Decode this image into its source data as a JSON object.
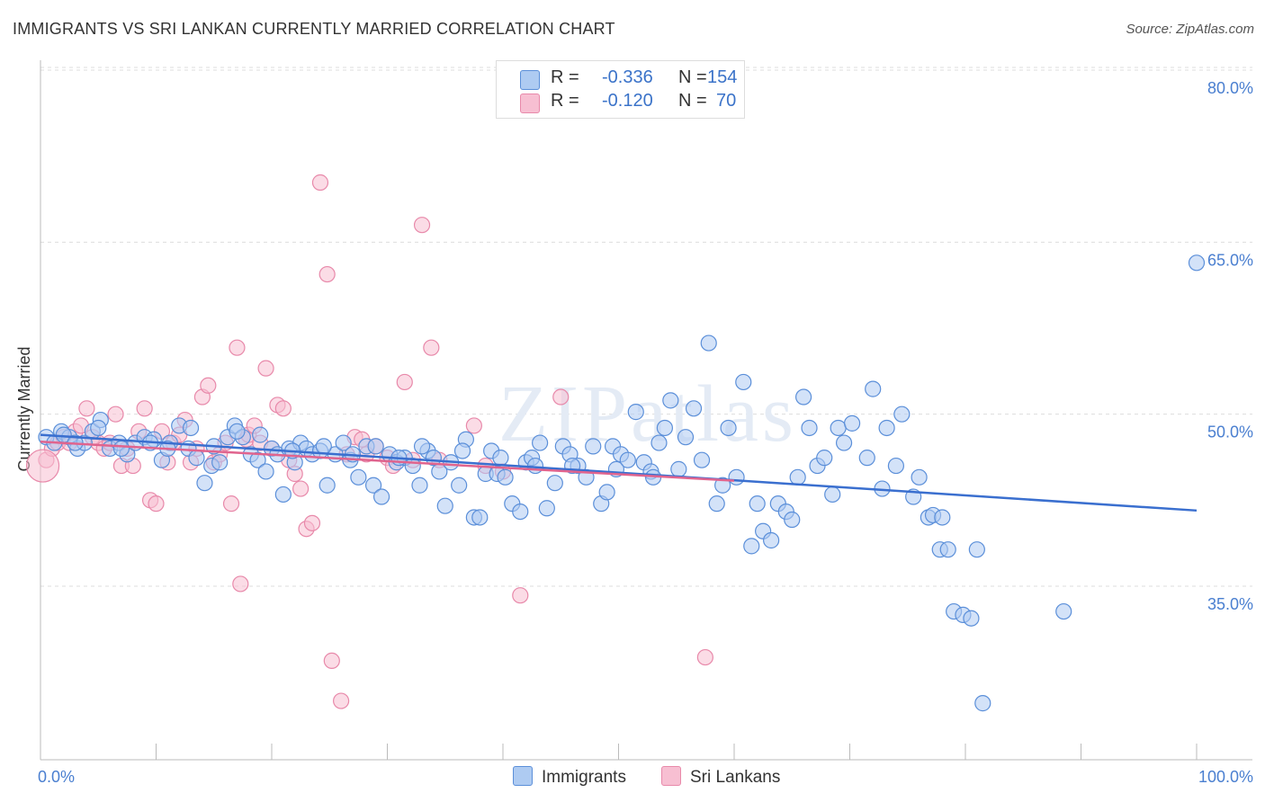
{
  "title": "IMMIGRANTS VS SRI LANKAN CURRENTLY MARRIED CORRELATION CHART",
  "source": "Source: ZipAtlas.com",
  "watermark": "ZIPatlas",
  "colors": {
    "immigrants_fill": "#aecbf2",
    "immigrants_stroke": "#5b8fd9",
    "immigrants_line": "#3a6fcf",
    "srilankans_fill": "#f7bfd2",
    "srilankans_stroke": "#e889aa",
    "srilankans_line": "#e0648e",
    "grid": "#dddddd",
    "axis_label": "#4a7fd0"
  },
  "legend": {
    "rows": [
      {
        "r_label": "R =",
        "r_value": "-0.336",
        "n_label": "N =",
        "n_value": "154"
      },
      {
        "r_label": "R =",
        "r_value": "-0.120",
        "n_label": "N =",
        "n_value": "70"
      }
    ]
  },
  "bottom_legend": {
    "immigrants": "Immigrants",
    "srilankans": "Sri Lankans"
  },
  "chart_data": {
    "type": "scatter",
    "title": "IMMIGRANTS VS SRI LANKAN CURRENTLY MARRIED CORRELATION CHART",
    "xlabel": "",
    "ylabel": "Currently Married",
    "xlim": [
      0,
      100
    ],
    "ylim": [
      20,
      82
    ],
    "x_tick_labels": [
      "0.0%",
      "100.0%"
    ],
    "y_ticks": [
      35,
      50,
      65,
      80
    ],
    "y_tick_labels": [
      "35.0%",
      "50.0%",
      "65.0%",
      "80.0%"
    ],
    "series": [
      {
        "name": "Immigrants",
        "trend": {
          "x": [
            0,
            100
          ],
          "y": [
            48.2,
            41.6
          ]
        },
        "points": [
          [
            0.5,
            48
          ],
          [
            1.2,
            47.5
          ],
          [
            1.8,
            48.5
          ],
          [
            2.5,
            48
          ],
          [
            3.2,
            47
          ],
          [
            3.8,
            47.5
          ],
          [
            4.5,
            48.5
          ],
          [
            5.2,
            49.5
          ],
          [
            6,
            47
          ],
          [
            6.8,
            47.5
          ],
          [
            7.5,
            46.5
          ],
          [
            8.2,
            47.5
          ],
          [
            9,
            48
          ],
          [
            9.8,
            47.8
          ],
          [
            10.5,
            46
          ],
          [
            11.2,
            47.5
          ],
          [
            12,
            49
          ],
          [
            12.8,
            47
          ],
          [
            13.5,
            46.2
          ],
          [
            14.2,
            44
          ],
          [
            14.8,
            45.5
          ],
          [
            15.5,
            45.8
          ],
          [
            16.2,
            48
          ],
          [
            16.8,
            49
          ],
          [
            17.5,
            48
          ],
          [
            18.2,
            46.5
          ],
          [
            18.8,
            46
          ],
          [
            19.5,
            45
          ],
          [
            20,
            47
          ],
          [
            20.5,
            46.5
          ],
          [
            21,
            43
          ],
          [
            21.5,
            47
          ],
          [
            22,
            45.8
          ],
          [
            22.5,
            47.5
          ],
          [
            23,
            47
          ],
          [
            23.5,
            46.5
          ],
          [
            24.2,
            46.8
          ],
          [
            24.8,
            43.8
          ],
          [
            25.5,
            46.5
          ],
          [
            26.2,
            47.5
          ],
          [
            26.8,
            46
          ],
          [
            27.5,
            44.5
          ],
          [
            28.2,
            47.2
          ],
          [
            28.8,
            43.8
          ],
          [
            29.5,
            42.8
          ],
          [
            30.2,
            46.5
          ],
          [
            30.8,
            45.8
          ],
          [
            31.5,
            46.2
          ],
          [
            32.2,
            45.5
          ],
          [
            32.8,
            43.8
          ],
          [
            33.5,
            46.8
          ],
          [
            34,
            46.2
          ],
          [
            34.5,
            45
          ],
          [
            35,
            42
          ],
          [
            35.5,
            45.8
          ],
          [
            36.2,
            43.8
          ],
          [
            36.8,
            47.8
          ],
          [
            37.5,
            41
          ],
          [
            38,
            41
          ],
          [
            38.5,
            44.8
          ],
          [
            39,
            46.8
          ],
          [
            39.5,
            44.8
          ],
          [
            40.2,
            44.5
          ],
          [
            40.8,
            42.2
          ],
          [
            41.5,
            41.5
          ],
          [
            42,
            45.8
          ],
          [
            42.5,
            46.2
          ],
          [
            43.2,
            47.5
          ],
          [
            43.8,
            41.8
          ],
          [
            44.5,
            44
          ],
          [
            45.2,
            47.2
          ],
          [
            45.8,
            46.5
          ],
          [
            46.5,
            45.5
          ],
          [
            47.2,
            44.5
          ],
          [
            47.8,
            47.2
          ],
          [
            48.5,
            42.2
          ],
          [
            49,
            43.2
          ],
          [
            49.5,
            47.2
          ],
          [
            50.2,
            46.5
          ],
          [
            50.8,
            46
          ],
          [
            51.5,
            50.2
          ],
          [
            52.2,
            45.8
          ],
          [
            52.8,
            45
          ],
          [
            53.5,
            47.5
          ],
          [
            54,
            48.8
          ],
          [
            54.5,
            51.2
          ],
          [
            55.2,
            45.2
          ],
          [
            55.8,
            48
          ],
          [
            56.5,
            50.5
          ],
          [
            57.2,
            46
          ],
          [
            57.8,
            56.2
          ],
          [
            58.5,
            42.2
          ],
          [
            59,
            43.8
          ],
          [
            59.5,
            48.8
          ],
          [
            60.2,
            44.5
          ],
          [
            60.8,
            52.8
          ],
          [
            61.5,
            38.5
          ],
          [
            62,
            42.2
          ],
          [
            62.5,
            39.8
          ],
          [
            63.2,
            39
          ],
          [
            63.8,
            42.2
          ],
          [
            64.5,
            41.5
          ],
          [
            65,
            40.8
          ],
          [
            65.5,
            44.5
          ],
          [
            66,
            51.5
          ],
          [
            66.5,
            48.8
          ],
          [
            67.2,
            45.5
          ],
          [
            67.8,
            46.2
          ],
          [
            68.5,
            43
          ],
          [
            69,
            48.8
          ],
          [
            69.5,
            47.5
          ],
          [
            70.2,
            49.2
          ],
          [
            71.5,
            46.2
          ],
          [
            72,
            52.2
          ],
          [
            72.8,
            43.5
          ],
          [
            73.2,
            48.8
          ],
          [
            74,
            45.5
          ],
          [
            74.5,
            50
          ],
          [
            75.5,
            42.8
          ],
          [
            76,
            44.5
          ],
          [
            76.8,
            41
          ],
          [
            77.2,
            41.2
          ],
          [
            77.8,
            38.2
          ],
          [
            78,
            41
          ],
          [
            78.5,
            38.2
          ],
          [
            79,
            32.8
          ],
          [
            79.8,
            32.5
          ],
          [
            80.5,
            32.2
          ],
          [
            81,
            38.2
          ],
          [
            81.5,
            24.8
          ],
          [
            88.5,
            32.8
          ],
          [
            100,
            63.2
          ],
          [
            2,
            48.2
          ],
          [
            3,
            47.5
          ],
          [
            5,
            48.8
          ],
          [
            7,
            47
          ],
          [
            9.5,
            47.5
          ],
          [
            11,
            47
          ],
          [
            13,
            48.8
          ],
          [
            15,
            47.2
          ],
          [
            17,
            48.5
          ],
          [
            19,
            48.2
          ],
          [
            21.8,
            46.8
          ],
          [
            24.5,
            47.2
          ],
          [
            27,
            46.5
          ],
          [
            29,
            47.2
          ],
          [
            31,
            46.2
          ],
          [
            33,
            47.2
          ],
          [
            36.5,
            46.8
          ],
          [
            39.8,
            46.2
          ],
          [
            42.8,
            45.5
          ],
          [
            46,
            45.5
          ],
          [
            49.8,
            45.2
          ],
          [
            53,
            44.5
          ]
        ]
      },
      {
        "name": "Sri Lankans",
        "trend": {
          "x": [
            0,
            60
          ],
          "y": [
            47.6,
            44.2
          ]
        },
        "points": [
          [
            0.5,
            46
          ],
          [
            1,
            47
          ],
          [
            1.5,
            47.5
          ],
          [
            2,
            48
          ],
          [
            2.5,
            47.5
          ],
          [
            3,
            48.5
          ],
          [
            3.5,
            49
          ],
          [
            4,
            50.5
          ],
          [
            4.5,
            48
          ],
          [
            5,
            47.5
          ],
          [
            5.5,
            47
          ],
          [
            6,
            47.5
          ],
          [
            6.5,
            50
          ],
          [
            7,
            45.5
          ],
          [
            7.5,
            47
          ],
          [
            8,
            45.5
          ],
          [
            8.5,
            48.5
          ],
          [
            9,
            50.5
          ],
          [
            9.5,
            42.5
          ],
          [
            10,
            42.2
          ],
          [
            10.5,
            48.5
          ],
          [
            11,
            45.8
          ],
          [
            11.5,
            47.5
          ],
          [
            12,
            48.2
          ],
          [
            12.5,
            49.5
          ],
          [
            13,
            45.8
          ],
          [
            13.5,
            47
          ],
          [
            14,
            51.5
          ],
          [
            14.5,
            52.5
          ],
          [
            15,
            45.8
          ],
          [
            15.5,
            46.5
          ],
          [
            16,
            47.5
          ],
          [
            16.5,
            42.2
          ],
          [
            17,
            55.8
          ],
          [
            17.3,
            35.2
          ],
          [
            17.8,
            47.8
          ],
          [
            18,
            48.2
          ],
          [
            18.5,
            49
          ],
          [
            19,
            47.5
          ],
          [
            19.5,
            54
          ],
          [
            20,
            47
          ],
          [
            20.5,
            50.8
          ],
          [
            21,
            50.5
          ],
          [
            21.5,
            46
          ],
          [
            22,
            44.8
          ],
          [
            22.5,
            43.5
          ],
          [
            23,
            40
          ],
          [
            23.5,
            40.5
          ],
          [
            24.2,
            70.2
          ],
          [
            24.8,
            62.2
          ],
          [
            25.2,
            28.5
          ],
          [
            26,
            25
          ],
          [
            26.5,
            46.5
          ],
          [
            27.2,
            48
          ],
          [
            27.8,
            47.8
          ],
          [
            28.2,
            46.5
          ],
          [
            29,
            47.2
          ],
          [
            30,
            46.2
          ],
          [
            30.5,
            45.5
          ],
          [
            31.5,
            52.8
          ],
          [
            32.2,
            46
          ],
          [
            33,
            66.5
          ],
          [
            33.8,
            55.8
          ],
          [
            34.5,
            46
          ],
          [
            37.5,
            49
          ],
          [
            38.5,
            45.5
          ],
          [
            40,
            45
          ],
          [
            41.5,
            34.2
          ],
          [
            45,
            51.5
          ],
          [
            57.5,
            28.8
          ]
        ]
      }
    ]
  }
}
